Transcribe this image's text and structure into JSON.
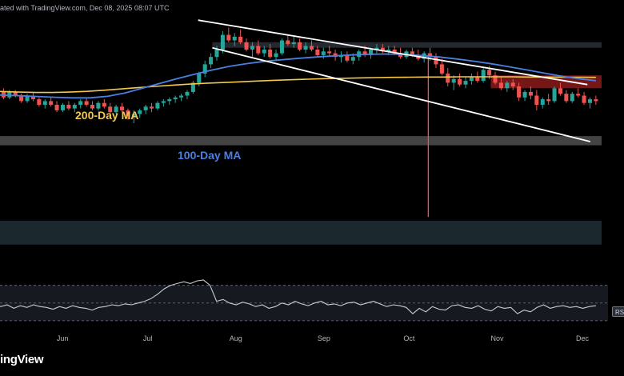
{
  "header": {
    "watermark_text": "ated with TradingView.com, Dec 08, 2025 08:07 UTC"
  },
  "brand": {
    "text": "ingView"
  },
  "labels": {
    "ma200": "200-Day MA",
    "ma100": "100-Day MA",
    "rsi_tag": "RSI"
  },
  "colors": {
    "background": "#000000",
    "candle_up": "#26a69a",
    "candle_down": "#ef5350",
    "ma200": "#f2c94c",
    "ma100": "#4a7fe0",
    "channel": "#ffffff",
    "support_zone": "#4a4a4a",
    "resistance_zone": "#8b1a1a",
    "demand_zone": "#1e2c33",
    "rsi_line": "#c8ccd6"
  },
  "chart_data": [
    {
      "type": "candlestick",
      "title": "",
      "x_axis": {
        "type": "date",
        "tick_labels": [
          "Jun",
          "Jul",
          "Aug",
          "Sep",
          "Oct",
          "Nov",
          "Dec"
        ]
      },
      "x_range": [
        "2025-05-01",
        "2025-12-10"
      ],
      "y_axis": {
        "tick_labels": [],
        "y_range": [
          0,
          100
        ]
      },
      "grid": false,
      "series": [
        {
          "candles_ohlc": [
            [
              55,
              57,
              52,
              54
            ],
            [
              54,
              58,
              53,
              57
            ],
            [
              57,
              59,
              55,
              56
            ],
            [
              56,
              60,
              54,
              58
            ],
            [
              58,
              59,
              55,
              55
            ],
            [
              55,
              58,
              54,
              57
            ],
            [
              57,
              59,
              53,
              54
            ],
            [
              54,
              58,
              53,
              57
            ],
            [
              57,
              58,
              54,
              55
            ],
            [
              55,
              56,
              51,
              52
            ],
            [
              52,
              56,
              51,
              55
            ],
            [
              55,
              57,
              52,
              53
            ],
            [
              53,
              54,
              49,
              50
            ],
            [
              50,
              53,
              48,
              52
            ],
            [
              52,
              54,
              49,
              50
            ],
            [
              50,
              52,
              46,
              47
            ],
            [
              47,
              51,
              46,
              50
            ],
            [
              50,
              52,
              47,
              48
            ],
            [
              48,
              51,
              46,
              50
            ],
            [
              50,
              53,
              48,
              52
            ],
            [
              52,
              54,
              49,
              50
            ],
            [
              50,
              52,
              47,
              48
            ],
            [
              48,
              52,
              47,
              51
            ],
            [
              51,
              53,
              48,
              49
            ],
            [
              49,
              51,
              45,
              46
            ],
            [
              46,
              50,
              45,
              49
            ],
            [
              49,
              51,
              46,
              47
            ],
            [
              47,
              48,
              42,
              44
            ],
            [
              44,
              47,
              40,
              45
            ],
            [
              45,
              48,
              43,
              47
            ],
            [
              47,
              50,
              45,
              49
            ],
            [
              49,
              51,
              46,
              48
            ],
            [
              48,
              52,
              47,
              51
            ],
            [
              51,
              53,
              49,
              52
            ],
            [
              52,
              54,
              50,
              53
            ],
            [
              53,
              55,
              51,
              54
            ],
            [
              54,
              56,
              52,
              55
            ],
            [
              55,
              58,
              53,
              57
            ],
            [
              57,
              63,
              56,
              62
            ],
            [
              62,
              68,
              60,
              67
            ],
            [
              67,
              74,
              65,
              72
            ],
            [
              72,
              78,
              70,
              76
            ],
            [
              76,
              82,
              74,
              80
            ],
            [
              80,
              90,
              78,
              88
            ],
            [
              88,
              92,
              84,
              85
            ],
            [
              85,
              89,
              82,
              87
            ],
            [
              87,
              91,
              83,
              84
            ],
            [
              84,
              86,
              79,
              80
            ],
            [
              80,
              84,
              76,
              82
            ],
            [
              82,
              85,
              77,
              78
            ],
            [
              78,
              82,
              76,
              80
            ],
            [
              80,
              83,
              75,
              76
            ],
            [
              76,
              80,
              74,
              78
            ],
            [
              78,
              86,
              77,
              85
            ],
            [
              85,
              88,
              82,
              83
            ],
            [
              83,
              87,
              81,
              84
            ],
            [
              84,
              86,
              79,
              80
            ],
            [
              80,
              84,
              78,
              82
            ],
            [
              82,
              85,
              79,
              80
            ],
            [
              80,
              82,
              76,
              77
            ],
            [
              77,
              81,
              75,
              79
            ],
            [
              79,
              82,
              76,
              78
            ],
            [
              78,
              80,
              74,
              76
            ],
            [
              76,
              79,
              73,
              77
            ],
            [
              77,
              79,
              73,
              74
            ],
            [
              74,
              78,
              72,
              76
            ],
            [
              76,
              80,
              74,
              79
            ],
            [
              79,
              82,
              76,
              77
            ],
            [
              77,
              81,
              75,
              80
            ],
            [
              80,
              83,
              78,
              81
            ],
            [
              81,
              83,
              78,
              79
            ],
            [
              79,
              82,
              77,
              80
            ],
            [
              80,
              82,
              77,
              78
            ],
            [
              78,
              81,
              75,
              76
            ],
            [
              76,
              80,
              75,
              79
            ],
            [
              79,
              81,
              76,
              77
            ],
            [
              77,
              80,
              74,
              75
            ],
            [
              75,
              79,
              73,
              78
            ],
            [
              78,
              81,
              74,
              76
            ],
            [
              76,
              78,
              70,
              72
            ],
            [
              72,
              75,
              66,
              67
            ],
            [
              67,
              70,
              60,
              62
            ],
            [
              62,
              66,
              58,
              64
            ],
            [
              64,
              67,
              60,
              61
            ],
            [
              61,
              65,
              59,
              63
            ],
            [
              63,
              67,
              61,
              65
            ],
            [
              65,
              68,
              62,
              63
            ],
            [
              63,
              70,
              62,
              69
            ],
            [
              69,
              71,
              64,
              66
            ],
            [
              66,
              68,
              61,
              62
            ],
            [
              62,
              65,
              58,
              59
            ],
            [
              59,
              63,
              57,
              62
            ],
            [
              62,
              64,
              58,
              60
            ],
            [
              60,
              62,
              52,
              54
            ],
            [
              54,
              58,
              52,
              57
            ],
            [
              57,
              60,
              53,
              55
            ],
            [
              55,
              58,
              47,
              50
            ],
            [
              50,
              54,
              48,
              53
            ],
            [
              53,
              56,
              50,
              52
            ],
            [
              52,
              60,
              51,
              59
            ],
            [
              59,
              62,
              55,
              56
            ],
            [
              56,
              58,
              51,
              52
            ],
            [
              52,
              57,
              51,
              56
            ],
            [
              56,
              59,
              54,
              55
            ],
            [
              55,
              57,
              50,
              51
            ],
            [
              51,
              54,
              48,
              53
            ],
            [
              53,
              55,
              50,
              52
            ]
          ]
        },
        {
          "name": "200-Day MA",
          "values": [
            58,
            57.6,
            57.2,
            56.9,
            56.7,
            56.7,
            56.9,
            57.3,
            57.9,
            58.6,
            59.3,
            60,
            60.6,
            61.2,
            61.7,
            62.1,
            62.5,
            62.9,
            63.3,
            63.6,
            63.9,
            64.2,
            64.4,
            64.6,
            64.8,
            64.9,
            65,
            65.1,
            65.1,
            65.2,
            65.2,
            65.2,
            65.2,
            65.1,
            65.1,
            65,
            65,
            64.9
          ]
        },
        {
          "name": "100-Day MA",
          "values": [
            56,
            55.6,
            55.2,
            54.9,
            54.5,
            54.1,
            53.8,
            53.8,
            54.6,
            56.4,
            59,
            61.6,
            64.2,
            66.6,
            68.9,
            70.9,
            72.4,
            73.6,
            74.5,
            75.3,
            76,
            76.6,
            77.1,
            77.5,
            77.6,
            77.4,
            76.8,
            76,
            74.9,
            73.7,
            72.3,
            70.7,
            69,
            67.3,
            65.6,
            64.2,
            63.1
          ]
        }
      ],
      "channel_lines": [
        {
          "from": [
            "2025-07-21",
            96
          ],
          "to": [
            "2025-12-05",
            61
          ]
        },
        {
          "from": [
            "2025-07-26",
            81
          ],
          "to": [
            "2025-12-06",
            30
          ]
        }
      ],
      "zones": [
        {
          "role": "support",
          "x_from": "2025-05-01",
          "x_to": "2025-12-10",
          "y_from": 28,
          "y_to": 33
        },
        {
          "role": "resistance",
          "x_from": "2025-11-01",
          "x_to": "2025-12-10",
          "y_from": 59,
          "y_to": 66
        },
        {
          "role": "range",
          "x_from": "2025-07-26",
          "x_to": "2025-12-10",
          "y_from": 81,
          "y_to": 84
        },
        {
          "role": "demand",
          "x_from": "2025-05-01",
          "x_to": "2025-12-10",
          "y_from": -26,
          "y_to": -13
        }
      ],
      "wick_spike": {
        "date": "2025-10-10",
        "high": 78,
        "low": -11
      }
    },
    {
      "type": "line",
      "title": "",
      "series": [
        {
          "name": "RSI",
          "values": [
            52,
            50,
            51,
            48,
            50,
            46,
            48,
            44,
            47,
            45,
            48,
            46,
            45,
            43,
            46,
            44,
            47,
            45,
            44,
            42,
            45,
            46,
            48,
            47,
            49,
            48,
            50,
            52,
            55,
            60,
            66,
            70,
            72,
            74,
            72,
            75,
            76,
            70,
            52,
            54,
            50,
            48,
            51,
            49,
            46,
            48,
            44,
            46,
            50,
            48,
            52,
            49,
            47,
            50,
            52,
            48,
            49,
            47,
            50,
            51,
            48,
            50,
            52,
            49,
            46,
            48,
            47,
            45,
            38,
            44,
            40,
            46,
            43,
            42,
            47,
            48,
            45,
            44,
            47,
            43,
            41,
            46,
            44,
            45,
            38,
            42,
            40,
            45,
            48,
            44,
            46,
            47,
            45,
            46,
            44,
            46,
            47
          ]
        }
      ],
      "y_range": [
        20,
        85
      ],
      "reference_levels": [
        70,
        50,
        30
      ]
    }
  ]
}
